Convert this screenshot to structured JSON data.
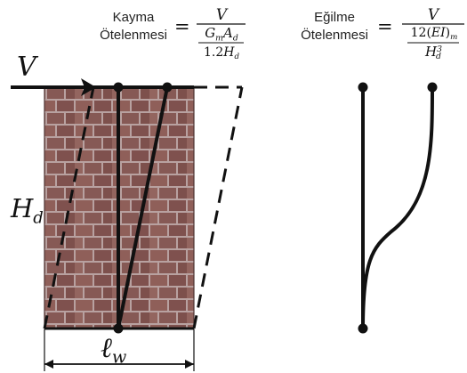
{
  "shear": {
    "label_line1": "Kayma",
    "label_line2": "Ötelenmesi",
    "equals": "=",
    "numerator": "V",
    "den_main": "G",
    "den_sub1": "m",
    "den_a": "A",
    "den_sub2": "d",
    "den_bottom": "1.2",
    "den_bottom_h": "H",
    "den_bottom_sub": "d"
  },
  "bending": {
    "label_line1": "Eğilme",
    "label_line2": "Ötelenmesi",
    "equals": "=",
    "numerator": "V",
    "den_coef": "12(",
    "den_ei": "EI",
    "den_close": ")",
    "den_sub": "m",
    "den_bottom_h": "H",
    "den_bottom_sup": "3",
    "den_bottom_sub": "d"
  },
  "labels": {
    "force": "V",
    "height_main": "H",
    "height_sub": "d",
    "length_main": "ℓ",
    "length_sub": "w"
  },
  "colors": {
    "brick": "#8b5a55",
    "mortar": "#b9a3a1",
    "line": "#111111"
  }
}
